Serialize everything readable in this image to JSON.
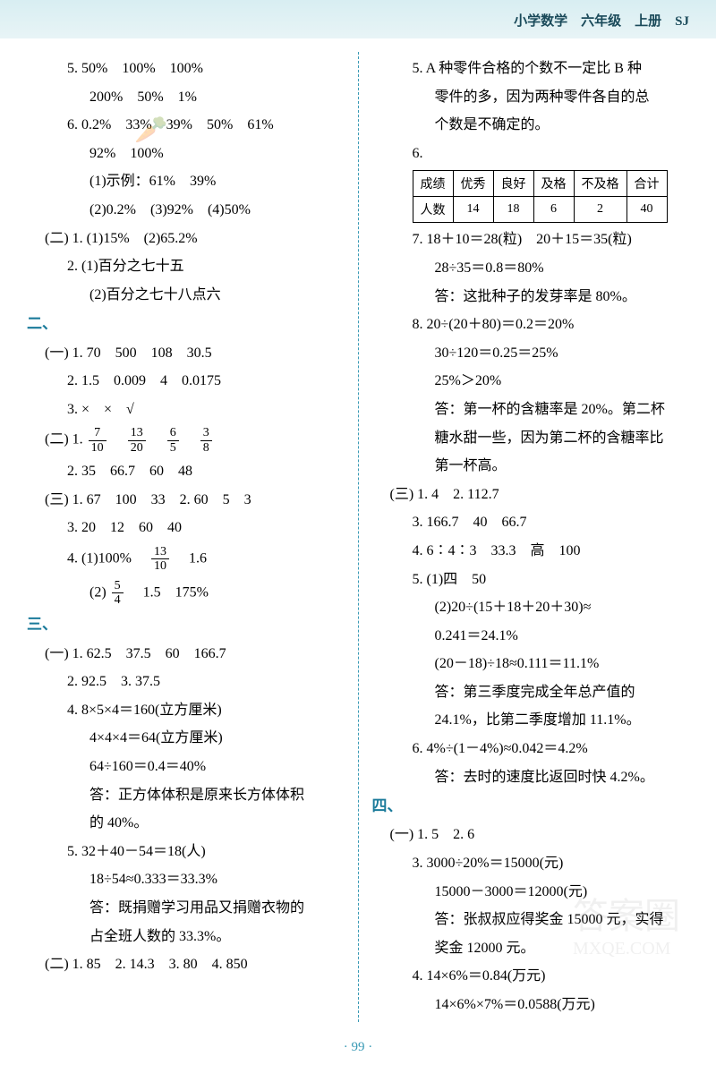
{
  "header": "小学数学　六年级　上册　SJ",
  "left": {
    "l1": "5. 50%　100%　100%",
    "l2": "200%　50%　1%",
    "l3": "6. 0.2%　33%　39%　50%　61%",
    "l4": "92%　100%",
    "l5": "(1)示例：61%　39%",
    "l6": "(2)0.2%　(3)92%　(4)50%",
    "l7": "(二) 1. (1)15%　(2)65.2%",
    "l8": "2. (1)百分之七十五",
    "l9": "(2)百分之七十八点六",
    "sec2": "二、",
    "l10": "(一) 1. 70　500　108　30.5",
    "l11": "2. 1.5　0.009　4　0.0175",
    "l12": "3. ×　×　√",
    "l13a": "(二) 1. ",
    "f1n": "7",
    "f1d": "10",
    "f2n": "13",
    "f2d": "20",
    "f3n": "6",
    "f3d": "5",
    "f4n": "3",
    "f4d": "8",
    "l14": "2. 35　66.7　60　48",
    "l15": "(三) 1. 67　100　33　2. 60　5　3",
    "l16": "3. 20　12　60　40",
    "l17a": "4. (1)100%　",
    "f5n": "13",
    "f5d": "10",
    "l17b": "　1.6",
    "l18a": "(2)",
    "f6n": "5",
    "f6d": "4",
    "l18b": "　1.5　175%",
    "sec3": "三、",
    "l19": "(一) 1. 62.5　37.5　60　166.7",
    "l20": "2. 92.5　3. 37.5",
    "l21": "4. 8×5×4＝160(立方厘米)",
    "l22": "4×4×4＝64(立方厘米)",
    "l23": "64÷160＝0.4＝40%",
    "l24": "答：正方体体积是原来长方体体积",
    "l25": "的 40%。",
    "l26": "5. 32＋40－54＝18(人)",
    "l27": "18÷54≈0.333＝33.3%",
    "l28": "答：既捐赠学习用品又捐赠衣物的",
    "l29": "占全班人数的 33.3%。",
    "l30": "(二) 1. 85　2. 14.3　3. 80　4. 850"
  },
  "right": {
    "r1": "5. A 种零件合格的个数不一定比 B 种",
    "r2": "零件的多，因为两种零件各自的总",
    "r3": "个数是不确定的。",
    "r4": "6.",
    "table": {
      "h1": "成绩",
      "h2": "优秀",
      "h3": "良好",
      "h4": "及格",
      "h5": "不及格",
      "h6": "合计",
      "d1": "人数",
      "d2": "14",
      "d3": "18",
      "d4": "6",
      "d5": "2",
      "d6": "40"
    },
    "r5": "7. 18＋10＝28(粒)　20＋15＝35(粒)",
    "r6": "28÷35＝0.8＝80%",
    "r7": "答：这批种子的发芽率是 80%。",
    "r8": "8. 20÷(20＋80)＝0.2＝20%",
    "r9": "30÷120＝0.25＝25%",
    "r10": "25%＞20%",
    "r11": "答：第一杯的含糖率是 20%。第二杯",
    "r12": "糖水甜一些，因为第二杯的含糖率比",
    "r13": "第一杯高。",
    "r14": "(三) 1. 4　2. 112.7",
    "r15": "3. 166.7　40　66.7",
    "r16": "4. 6∶4∶3　33.3　高　100",
    "r17": "5. (1)四　50",
    "r18": "(2)20÷(15＋18＋20＋30)≈",
    "r19": "0.241＝24.1%",
    "r20": "(20－18)÷18≈0.111＝11.1%",
    "r21": "答：第三季度完成全年总产值的",
    "r22": "24.1%，比第二季度增加 11.1%。",
    "r23": "6. 4%÷(1－4%)≈0.042＝4.2%",
    "r24": "答：去时的速度比返回时快 4.2%。",
    "sec4": "四、",
    "r25": "(一) 1. 5　2. 6",
    "r26": "3. 3000÷20%＝15000(元)",
    "r27": "15000－3000＝12000(元)",
    "r28": "答：张叔叔应得奖金 15000 元，实得",
    "r29": "奖金 12000 元。",
    "r30": "4. 14×6%＝0.84(万元)",
    "r31": "14×6%×7%＝0.0588(万元)"
  },
  "footer": "· 99 ·",
  "wm_text": "答案圈",
  "wm_url": "MXQE.COM"
}
